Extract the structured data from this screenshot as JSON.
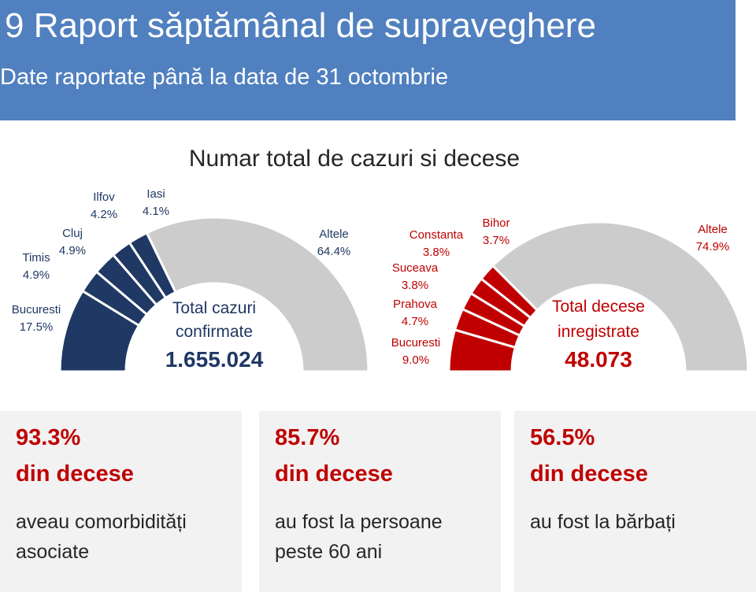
{
  "header": {
    "title": "9 Raport săptămânal de supraveghere",
    "subtitle": "Date raportate până la data de 31 octombrie"
  },
  "section_title": "Numar total de cazuri si decese",
  "colors": {
    "header_bg": "#5080bf",
    "cases": "#1f3864",
    "deaths": "#c00000",
    "other": "#cccccc"
  },
  "chart_data": [
    {
      "type": "pie",
      "variant": "semicircle-donut",
      "slices": [
        {
          "label": "Bucuresti",
          "value": 17.5,
          "display": "17.5%"
        },
        {
          "label": "Timis",
          "value": 4.9,
          "display": "4.9%"
        },
        {
          "label": "Cluj",
          "value": 4.9,
          "display": "4.9%"
        },
        {
          "label": "Ilfov",
          "value": 4.2,
          "display": "4.2%"
        },
        {
          "label": "Iasi",
          "value": 4.1,
          "display": "4.1%"
        },
        {
          "label": "Altele",
          "value": 64.4,
          "display": "64.4%"
        }
      ],
      "center_label": "Total cazuri confirmate",
      "center_label_line1": "Total cazuri",
      "center_label_line2": "confirmate",
      "total": "1.655.024",
      "highlight_color": "#1f3864"
    },
    {
      "type": "pie",
      "variant": "semicircle-donut",
      "slices": [
        {
          "label": "Bucuresti",
          "value": 9.0,
          "display": "9.0%"
        },
        {
          "label": "Prahova",
          "value": 4.7,
          "display": "4.7%"
        },
        {
          "label": "Suceava",
          "value": 3.8,
          "display": "3.8%"
        },
        {
          "label": "Constanta",
          "value": 3.8,
          "display": "3.8%"
        },
        {
          "label": "Bihor",
          "value": 3.7,
          "display": "3.7%"
        },
        {
          "label": "Altele",
          "value": 74.9,
          "display": "74.9%"
        }
      ],
      "center_label": "Total decese inregistrate",
      "center_label_line1": "Total decese",
      "center_label_line2": "inregistrate",
      "total": "48.073",
      "highlight_color": "#c00000"
    }
  ],
  "cards": [
    {
      "value": "93.3%",
      "label": "din decese",
      "desc": "aveau comorbidități asociate"
    },
    {
      "value": "85.7%",
      "label": "din decese",
      "desc": "au fost la persoane peste 60 ani"
    },
    {
      "value": "56.5%",
      "label": "din decese",
      "desc": "au fost la bărbați"
    }
  ]
}
